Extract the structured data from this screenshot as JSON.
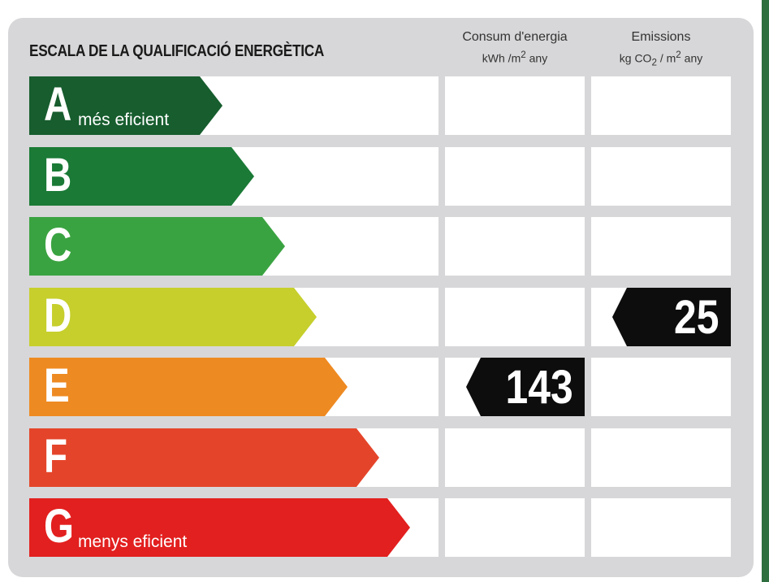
{
  "chart_data": {
    "type": "table",
    "title": "ESCALA DE LA QUALIFICACIÓ ENERGÈTICA",
    "columns": [
      {
        "label": "Consum d'energia",
        "unit_prefix": "kWh /m",
        "unit_suffix": " any"
      },
      {
        "label": "Emissions",
        "unit_prefix": "kg CO",
        "unit_mid": " / m",
        "unit_suffix": " any"
      }
    ],
    "classes": [
      {
        "letter": "A",
        "note": "més eficient",
        "color": "#175d2e"
      },
      {
        "letter": "B",
        "note": "",
        "color": "#1a7a36"
      },
      {
        "letter": "C",
        "note": "",
        "color": "#3aa341"
      },
      {
        "letter": "D",
        "note": "",
        "color": "#c6cf2c"
      },
      {
        "letter": "E",
        "note": "",
        "color": "#ee8a22"
      },
      {
        "letter": "F",
        "note": "",
        "color": "#e4452a"
      },
      {
        "letter": "G",
        "note": "menys eficient",
        "color": "#e2201f"
      }
    ],
    "energy_consumption": {
      "value": "143",
      "class": "E"
    },
    "emissions": {
      "value": "25",
      "class": "D"
    }
  }
}
